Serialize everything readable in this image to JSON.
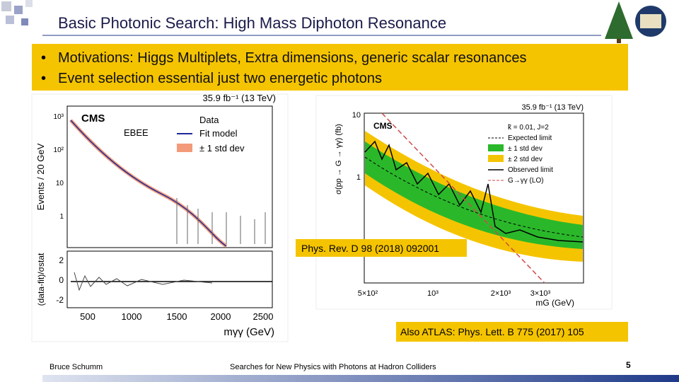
{
  "header": {
    "title": "Basic Photonic Search: High Mass Diphoton Resonance"
  },
  "bullets": [
    "Motivations: Higgs Multiplets, Extra dimensions, generic scalar resonances",
    "Event selection essential just two energetic photons"
  ],
  "left_plot": {
    "lumi": "35.9 fb⁻¹ (13 TeV)",
    "experiment": "CMS",
    "category": "EBEE",
    "legend": [
      "Data",
      "Fit model",
      "± 1 std dev"
    ],
    "y_label": "Events / 20 GeV",
    "y_ticks": [
      "10³",
      "10²",
      "10",
      "1"
    ],
    "ratio_label": "(data-fit)/σstat",
    "ratio_ticks": [
      "2",
      "0",
      "-2"
    ],
    "x_ticks": [
      "500",
      "1000",
      "1500",
      "2000",
      "2500"
    ],
    "x_label": "mγγ (GeV)"
  },
  "right_plot": {
    "lumi": "35.9 fb⁻¹ (13 TeV)",
    "experiment": "CMS",
    "legend": [
      "k̃ = 0.01, J=2",
      "Expected limit",
      "± 1 std dev",
      "± 2 std dev",
      "Observed limit",
      "G→γγ (LO)"
    ],
    "y_label": "σ(pp → G → γγ) (fb)",
    "y_ticks": [
      "10",
      "1"
    ],
    "x_ticks": [
      "5×10²",
      "10³",
      "2×10³",
      "3×10³"
    ],
    "x_label": "mG (GeV)",
    "citation": "Phys. Rev. D 98 (2018) 092001"
  },
  "atlas_note": "Also ATLAS: Phys. Lett. B 775 (2017) 105",
  "footer": {
    "author": "Bruce Schumm",
    "talk": "Searches for New Physics with Photons at Hadron Colliders",
    "page": "5"
  }
}
